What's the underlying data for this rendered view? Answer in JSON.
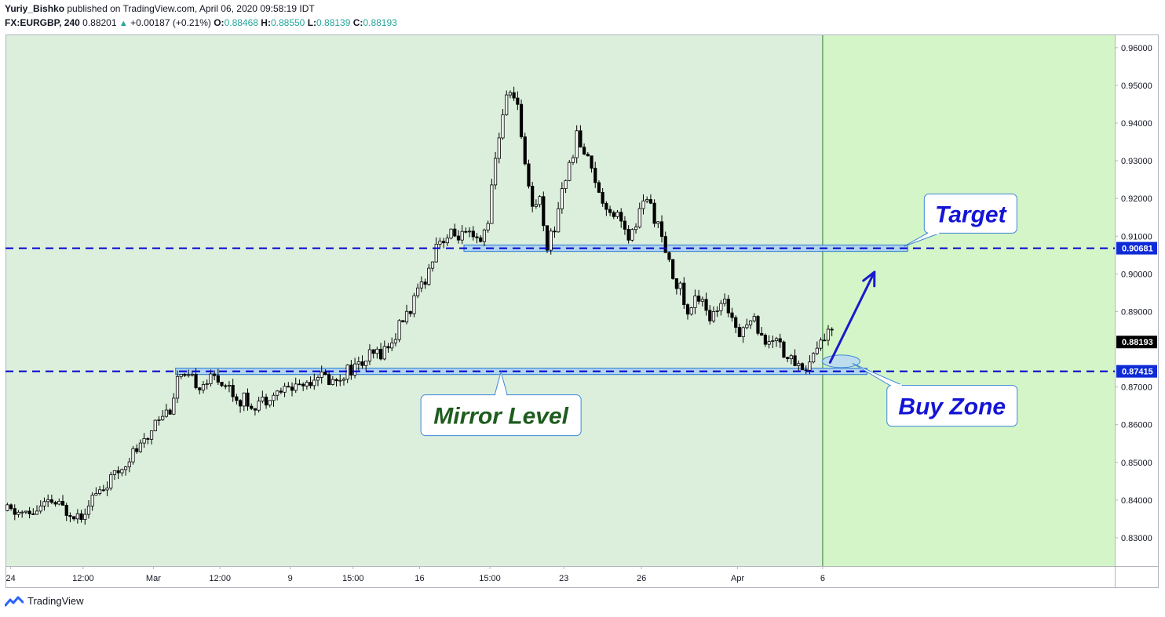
{
  "header": {
    "author": "Yuriy_Bishko",
    "published_text": "published on TradingView.com, April 06, 2020 09:58:19 IDT",
    "symbol": "FX:EURGBP, 240",
    "last": "0.88201",
    "change_arrow": "▲",
    "change": "+0.00187 (+0.21%)",
    "open_label": "O:",
    "open": "0.88468",
    "high_label": "H:",
    "high": "0.88550",
    "low_label": "L:",
    "low": "0.88139",
    "close_label": "C:",
    "close": "0.88193"
  },
  "footer": {
    "brand": "TradingView"
  },
  "colors": {
    "plot_bg": "#dcefdc",
    "future_bg": "#d4f5c8",
    "level_line": "#0000cc",
    "zone_fill": "#a9cff2",
    "zone_stroke": "#3f87d6",
    "arrow": "#1a1acc",
    "callout_target": "#1414d6",
    "callout_buy": "#1414d6",
    "callout_mirror": "#1f5c1f",
    "candle": "#000000",
    "axis_text": "#131722"
  },
  "chart_data": {
    "type": "candlestick",
    "symbol": "FX:EURGBP",
    "interval": "240",
    "ylim": [
      0.8225,
      0.9635
    ],
    "y_ticks": [
      "0.96000",
      "0.95000",
      "0.94000",
      "0.93000",
      "0.92000",
      "0.91000",
      "0.90000",
      "0.89000",
      "0.87000",
      "0.86000",
      "0.85000",
      "0.84000",
      "0.83000"
    ],
    "x_ticks": [
      "24",
      "12:00",
      "Mar",
      "12:00",
      "9",
      "15:00",
      "16",
      "15:00",
      "23",
      "26",
      "Apr",
      "6"
    ],
    "x_tick_positions": [
      0.2,
      10,
      19.5,
      28.5,
      38,
      46.5,
      55.5,
      65,
      75,
      85.5,
      98.5,
      110
    ],
    "bars_count": 150,
    "last_bar_index": 110,
    "current_price": 0.88193,
    "current_price_label": "0.88193",
    "levels": [
      {
        "name": "target",
        "price": 0.90681,
        "label": "0.90681"
      },
      {
        "name": "mirror",
        "price": 0.87415,
        "label": "0.87415"
      }
    ],
    "zones": [
      {
        "name": "target-zone",
        "x0": 61.5,
        "x1": 121.5,
        "price": 0.90681
      },
      {
        "name": "mirror-zone",
        "x0": 22.5,
        "x1": 116.0,
        "price": 0.87415
      }
    ],
    "buy_zone_ellipse": {
      "x": 112.5,
      "price": 0.8768
    },
    "arrow": {
      "from": [
        111,
        0.8765
      ],
      "to": [
        117,
        0.9005
      ]
    },
    "callouts": [
      {
        "name": "target",
        "text": "Target",
        "x": 130,
        "price": 0.916,
        "anchor": [
          121,
          0.9073
        ]
      },
      {
        "name": "buy-zone",
        "text": "Buy Zone",
        "x": 127.5,
        "price": 0.865,
        "anchor": [
          114,
          0.8763
        ]
      },
      {
        "name": "mirror-level",
        "text": "Mirror Level",
        "x": 66.5,
        "price": 0.8625,
        "anchor": [
          66.5,
          0.874
        ]
      }
    ],
    "close_path": [
      [
        0,
        0.8372
      ],
      [
        3,
        0.8362
      ],
      [
        6,
        0.8395
      ],
      [
        8,
        0.8372
      ],
      [
        10,
        0.8362
      ],
      [
        11,
        0.84
      ],
      [
        13,
        0.843
      ],
      [
        15,
        0.8475
      ],
      [
        17,
        0.8525
      ],
      [
        19,
        0.856
      ],
      [
        20,
        0.862
      ],
      [
        22,
        0.864
      ],
      [
        23,
        0.8725
      ],
      [
        25,
        0.8715
      ],
      [
        26,
        0.8705
      ],
      [
        28,
        0.8725
      ],
      [
        30,
        0.87
      ],
      [
        31,
        0.867
      ],
      [
        33,
        0.8655
      ],
      [
        35,
        0.867
      ],
      [
        37,
        0.869
      ],
      [
        39,
        0.8705
      ],
      [
        41,
        0.8715
      ],
      [
        42,
        0.8735
      ],
      [
        44,
        0.8715
      ],
      [
        46,
        0.8745
      ],
      [
        48,
        0.8765
      ],
      [
        50,
        0.879
      ],
      [
        52,
        0.8815
      ],
      [
        53,
        0.8865
      ],
      [
        55,
        0.8925
      ],
      [
        56,
        0.8975
      ],
      [
        57,
        0.901
      ],
      [
        58,
        0.9085
      ],
      [
        60,
        0.91
      ],
      [
        62,
        0.91
      ],
      [
        64,
        0.908
      ],
      [
        65,
        0.915
      ],
      [
        66,
        0.93
      ],
      [
        67,
        0.943
      ],
      [
        68,
        0.949
      ],
      [
        69,
        0.944
      ],
      [
        70,
        0.93
      ],
      [
        71,
        0.918
      ],
      [
        72,
        0.92
      ],
      [
        73,
        0.908
      ],
      [
        74,
        0.912
      ],
      [
        75,
        0.923
      ],
      [
        76,
        0.928
      ],
      [
        77,
        0.937
      ],
      [
        78,
        0.932
      ],
      [
        79,
        0.929
      ],
      [
        80,
        0.921
      ],
      [
        81,
        0.918
      ],
      [
        83,
        0.915
      ],
      [
        84,
        0.908
      ],
      [
        85,
        0.913
      ],
      [
        86,
        0.92
      ],
      [
        87,
        0.918
      ],
      [
        88,
        0.913
      ],
      [
        89,
        0.905
      ],
      [
        90,
        0.9
      ],
      [
        91,
        0.896
      ],
      [
        92,
        0.889
      ],
      [
        93,
        0.893
      ],
      [
        94,
        0.894
      ],
      [
        95,
        0.888
      ],
      [
        96,
        0.89
      ],
      [
        97,
        0.892
      ],
      [
        98,
        0.889
      ],
      [
        99,
        0.885
      ],
      [
        100,
        0.887
      ],
      [
        101,
        0.888
      ],
      [
        102,
        0.884
      ],
      [
        103,
        0.881
      ],
      [
        104,
        0.884
      ],
      [
        105,
        0.879
      ],
      [
        106,
        0.877
      ],
      [
        107,
        0.876
      ],
      [
        108,
        0.8745
      ],
      [
        109,
        0.879
      ],
      [
        110,
        0.882
      ],
      [
        111,
        0.8845
      ]
    ],
    "annotations": [
      "Target",
      "Buy Zone",
      "Mirror Level"
    ]
  }
}
